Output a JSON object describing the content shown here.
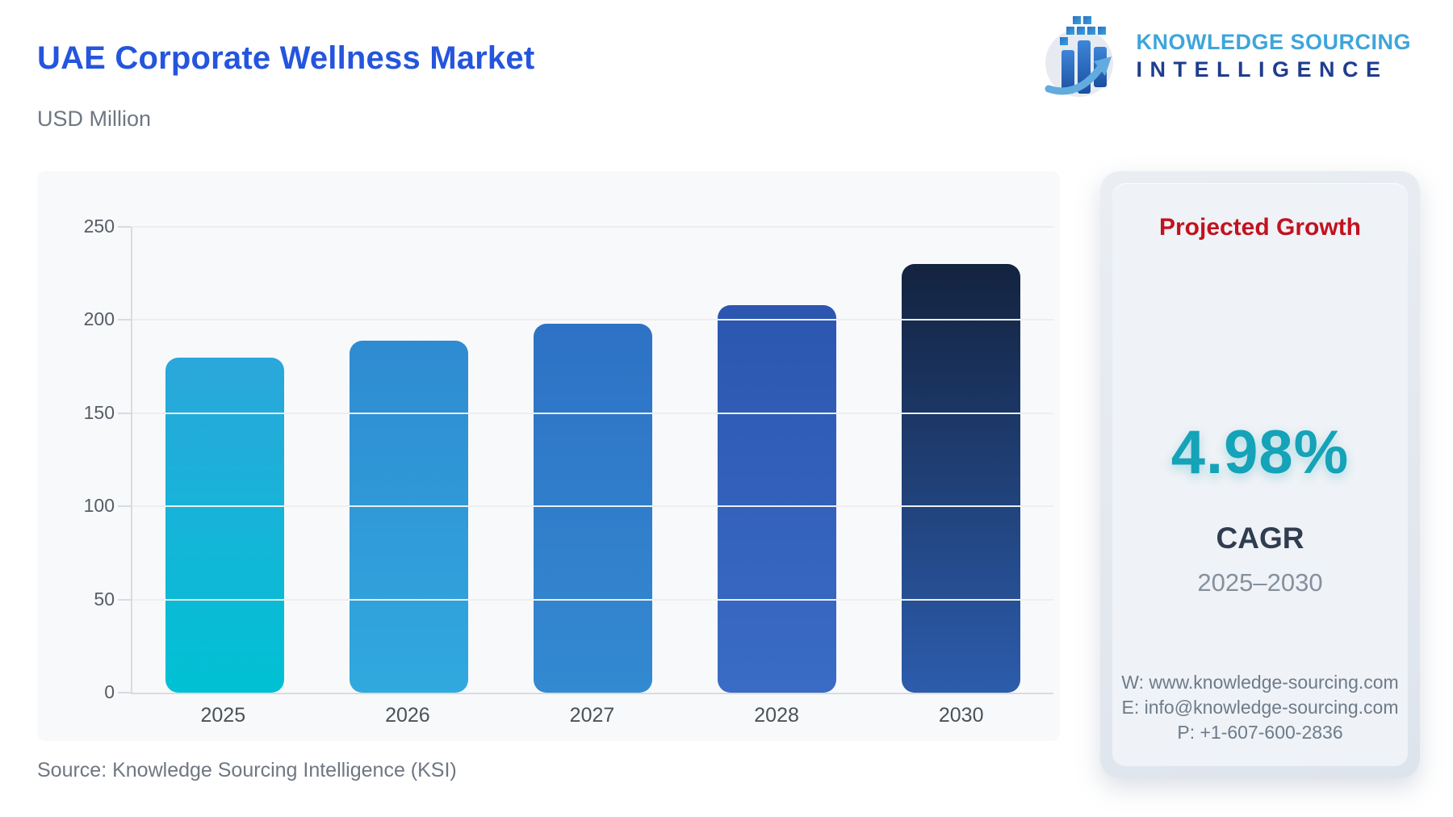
{
  "header": {
    "title": "UAE Corporate Wellness Market",
    "subtitle": "USD Million"
  },
  "logo": {
    "line1": "KNOWLEDGE SOURCING",
    "line2": "INTELLIGENCE"
  },
  "chart_data": {
    "type": "bar",
    "title": "UAE Corporate Wellness Market",
    "ylabel": "USD Million",
    "xlabel": "",
    "categories": [
      "2025",
      "2026",
      "2027",
      "2028",
      "2030"
    ],
    "values": [
      180,
      189,
      198,
      208,
      230
    ],
    "ylim": [
      0,
      250
    ],
    "yticks": [
      0,
      50,
      100,
      150,
      200,
      250
    ],
    "grid": true,
    "legend": "none",
    "bar_gradients": [
      [
        "#2BA7DB",
        "#00C1D4"
      ],
      [
        "#2F8BD1",
        "#30A9DF"
      ],
      [
        "#2E72C5",
        "#338AD1"
      ],
      [
        "#2C56B0",
        "#3A6CC5"
      ],
      [
        "#13233F",
        "#2C5CAC"
      ]
    ]
  },
  "growth_panel": {
    "heading": "Projected Growth",
    "heading_color": "#C2121F",
    "cagr_value": "4.98%",
    "cagr_value_color": "#14A3B8",
    "cagr_label": "CAGR",
    "period": "2025–2030",
    "contact": {
      "website": "W: www.knowledge-sourcing.com",
      "email": "E: info@knowledge-sourcing.com",
      "phone": "P: +1-607-600-2836"
    }
  },
  "footer": {
    "source": "Source: Knowledge Sourcing Intelligence (KSI)"
  },
  "colors": {
    "title_blue": "#2555DE",
    "subtitle_gray": "#6F7782",
    "card_bg": "#F8F9FA",
    "panel_bg": "#EFF2F6",
    "axis_gray": "#D8DBDF",
    "grid_gray": "#ECEEF0"
  }
}
